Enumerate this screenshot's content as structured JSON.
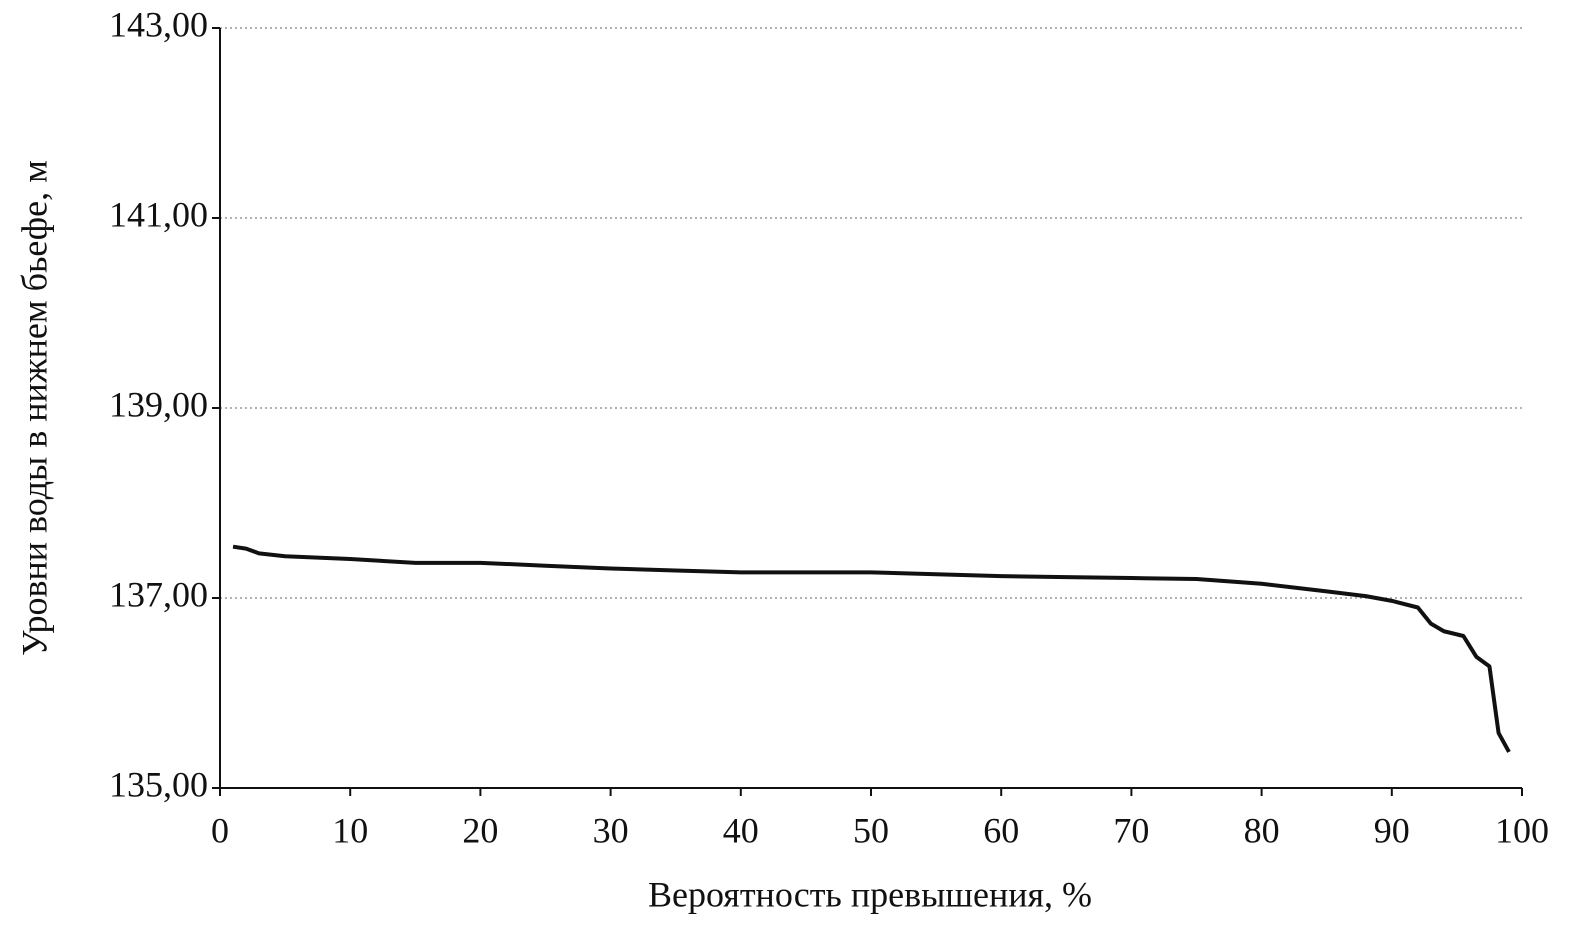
{
  "chart_data": {
    "type": "line",
    "x_label": "Вероятность превышения, %",
    "y_label": "Уровни воды в нижнем бьефе, м",
    "xlim": [
      0,
      100
    ],
    "xticks": [
      0,
      10,
      20,
      30,
      40,
      50,
      60,
      70,
      80,
      90,
      100
    ],
    "ylim": [
      135,
      143
    ],
    "yticks": [
      {
        "value": 135,
        "label": "135,00"
      },
      {
        "value": 137,
        "label": "137,00"
      },
      {
        "value": 139,
        "label": "139,00"
      },
      {
        "value": 141,
        "label": "141,00"
      },
      {
        "value": 143,
        "label": "143,00"
      }
    ],
    "grid": true,
    "series": [
      {
        "color": "#111111",
        "x": [
          1,
          2,
          3,
          5,
          10,
          15,
          20,
          25,
          30,
          35,
          40,
          45,
          50,
          55,
          60,
          65,
          70,
          75,
          80,
          85,
          88,
          90,
          92,
          93,
          94,
          95.5,
          96.5,
          97.5,
          98.2,
          99
        ],
        "values": [
          137.54,
          137.52,
          137.47,
          137.44,
          137.41,
          137.37,
          137.37,
          137.34,
          137.31,
          137.29,
          137.27,
          137.27,
          137.27,
          137.25,
          137.23,
          137.22,
          137.21,
          137.2,
          137.15,
          137.07,
          137.02,
          136.97,
          136.9,
          136.73,
          136.65,
          136.6,
          136.38,
          136.28,
          135.58,
          135.38
        ]
      }
    ]
  }
}
